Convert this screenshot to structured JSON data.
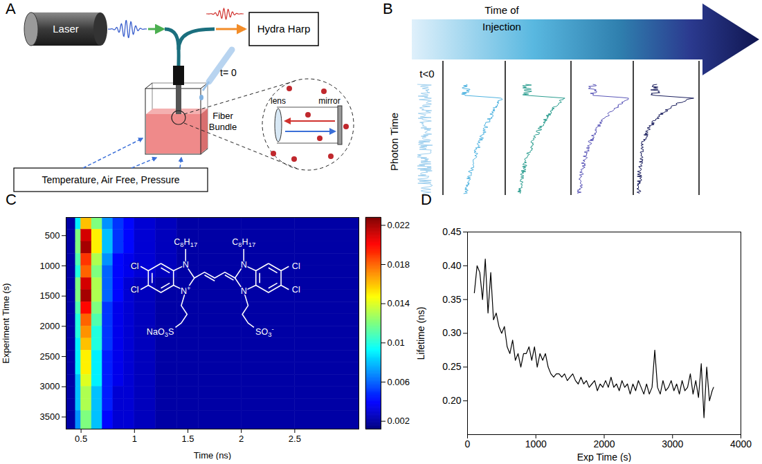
{
  "panel_a": {
    "letter": "A",
    "labels": {
      "laser": "Laser",
      "detector": "Hydra Harp",
      "injection": "t= 0",
      "fiber": "Fiber Bundle",
      "lens": "lens",
      "mirror": "mirror",
      "conditions": "Temperature, Air Free, Pressure"
    }
  },
  "panel_b": {
    "letter": "B",
    "labels": [
      "t<0",
      "Time of Injection"
    ],
    "axis_label": "Photon Time"
  },
  "chart_data": [
    {
      "letter": "C",
      "type": "heatmap",
      "x_label": "Time (ns)",
      "y_label": "Experiment Time (s)",
      "xlim": [
        0.36,
        3.1
      ],
      "xticks": [
        0.5,
        1,
        1.5,
        2,
        2.5
      ],
      "ylim": [
        200,
        3700
      ],
      "yticks": [
        500,
        1000,
        1500,
        2000,
        2500,
        3000,
        3500
      ],
      "x_bins": [
        0.36,
        0.45,
        0.5,
        0.6,
        0.7,
        0.8,
        0.9,
        1.0,
        1.2,
        1.4,
        1.6,
        2.0,
        2.5,
        3.1
      ],
      "y_bins": [
        200,
        400,
        600,
        800,
        1000,
        1200,
        1400,
        1600,
        1800,
        2000,
        2200,
        2400,
        2600,
        2800,
        3000,
        3200,
        3400,
        3700
      ],
      "cells": [
        [
          0.002,
          0.009,
          0.016,
          0.012,
          0.007,
          0.005,
          0.004,
          0.003,
          0.0025,
          0.002,
          0.002,
          0.002,
          0.002
        ],
        [
          0.002,
          0.012,
          0.021,
          0.015,
          0.008,
          0.005,
          0.004,
          0.003,
          0.0025,
          0.002,
          0.002,
          0.002,
          0.002
        ],
        [
          0.002,
          0.012,
          0.022,
          0.015,
          0.008,
          0.005,
          0.004,
          0.003,
          0.0025,
          0.002,
          0.002,
          0.002,
          0.002
        ],
        [
          0.002,
          0.011,
          0.019,
          0.013,
          0.007,
          0.004,
          0.0035,
          0.003,
          0.0025,
          0.002,
          0.002,
          0.002,
          0.002
        ],
        [
          0.002,
          0.01,
          0.018,
          0.012,
          0.006,
          0.004,
          0.0035,
          0.003,
          0.0025,
          0.002,
          0.002,
          0.002,
          0.002
        ],
        [
          0.002,
          0.012,
          0.021,
          0.013,
          0.006,
          0.004,
          0.003,
          0.0025,
          0.002,
          0.002,
          0.002,
          0.002,
          0.002
        ],
        [
          0.002,
          0.012,
          0.022,
          0.013,
          0.006,
          0.004,
          0.003,
          0.0025,
          0.002,
          0.002,
          0.002,
          0.002,
          0.002
        ],
        [
          0.002,
          0.011,
          0.02,
          0.012,
          0.005,
          0.0035,
          0.003,
          0.0025,
          0.002,
          0.002,
          0.002,
          0.002,
          0.002
        ],
        [
          0.002,
          0.01,
          0.018,
          0.011,
          0.005,
          0.0035,
          0.003,
          0.0025,
          0.002,
          0.002,
          0.002,
          0.002,
          0.002
        ],
        [
          0.002,
          0.01,
          0.017,
          0.01,
          0.005,
          0.0035,
          0.003,
          0.0025,
          0.002,
          0.002,
          0.002,
          0.002,
          0.002
        ],
        [
          0.002,
          0.009,
          0.016,
          0.01,
          0.005,
          0.0035,
          0.003,
          0.0025,
          0.002,
          0.002,
          0.002,
          0.002,
          0.002
        ],
        [
          0.002,
          0.009,
          0.015,
          0.009,
          0.0045,
          0.0035,
          0.003,
          0.0025,
          0.002,
          0.002,
          0.002,
          0.002,
          0.002
        ],
        [
          0.002,
          0.009,
          0.015,
          0.009,
          0.0045,
          0.0035,
          0.003,
          0.0025,
          0.002,
          0.002,
          0.002,
          0.002,
          0.002
        ],
        [
          0.002,
          0.008,
          0.014,
          0.009,
          0.0045,
          0.0035,
          0.003,
          0.0025,
          0.002,
          0.002,
          0.002,
          0.002,
          0.002
        ],
        [
          0.002,
          0.008,
          0.013,
          0.008,
          0.0045,
          0.003,
          0.003,
          0.0025,
          0.002,
          0.002,
          0.002,
          0.002,
          0.002
        ],
        [
          0.002,
          0.008,
          0.013,
          0.008,
          0.0045,
          0.003,
          0.003,
          0.0025,
          0.002,
          0.002,
          0.002,
          0.002,
          0.002
        ],
        [
          0.002,
          0.007,
          0.012,
          0.008,
          0.004,
          0.003,
          0.003,
          0.0025,
          0.002,
          0.002,
          0.002,
          0.002,
          0.002
        ]
      ],
      "color_range": [
        0.0012,
        0.0228
      ],
      "color_ticks": [
        0.002,
        0.006,
        0.01,
        0.014,
        0.018,
        0.022
      ],
      "structure": {
        "substituent": "C8H17",
        "nitrogen": "N",
        "cationic_nitrogen": "N+",
        "halogen": "Cl",
        "left_sulfonate": "NaO3S",
        "right_sulfonate": "SO3-"
      }
    },
    {
      "letter": "D",
      "type": "line",
      "x_label": "Exp Time (s)",
      "y_label": "Lifetime (ns)",
      "color": "#000000",
      "xlim": [
        0,
        4000
      ],
      "xticks": [
        0,
        1000,
        2000,
        3000,
        4000
      ],
      "ylim": [
        0.15,
        0.45
      ],
      "yticks": [
        {
          "value": 0.2,
          "label": "0.20"
        },
        {
          "value": 0.25,
          "label": "0.25"
        },
        {
          "value": 0.3,
          "label": "0.30"
        },
        {
          "value": 0.35,
          "label": "0.35"
        },
        {
          "value": 0.4,
          "label": "0.40"
        },
        {
          "value": 0.45,
          "label": "0.45"
        }
      ],
      "x": [
        100,
        140,
        180,
        220,
        260,
        300,
        340,
        380,
        420,
        460,
        500,
        540,
        580,
        620,
        660,
        700,
        740,
        780,
        820,
        860,
        900,
        940,
        980,
        1020,
        1060,
        1100,
        1140,
        1180,
        1220,
        1260,
        1300,
        1340,
        1380,
        1420,
        1460,
        1500,
        1540,
        1580,
        1620,
        1660,
        1700,
        1740,
        1780,
        1820,
        1860,
        1900,
        1940,
        1980,
        2020,
        2060,
        2100,
        2140,
        2180,
        2220,
        2260,
        2300,
        2340,
        2380,
        2420,
        2460,
        2500,
        2540,
        2580,
        2620,
        2660,
        2700,
        2740,
        2780,
        2820,
        2860,
        2900,
        2940,
        2980,
        3020,
        3060,
        3100,
        3140,
        3180,
        3220,
        3260,
        3300,
        3340,
        3380,
        3420,
        3460,
        3500,
        3540,
        3580,
        3600
      ],
      "values": [
        0.36,
        0.4,
        0.39,
        0.35,
        0.41,
        0.33,
        0.39,
        0.32,
        0.33,
        0.31,
        0.3,
        0.31,
        0.28,
        0.27,
        0.29,
        0.26,
        0.27,
        0.25,
        0.27,
        0.27,
        0.28,
        0.26,
        0.28,
        0.25,
        0.27,
        0.26,
        0.27,
        0.25,
        0.24,
        0.235,
        0.24,
        0.24,
        0.235,
        0.24,
        0.23,
        0.235,
        0.24,
        0.23,
        0.225,
        0.235,
        0.225,
        0.23,
        0.22,
        0.225,
        0.23,
        0.215,
        0.225,
        0.22,
        0.23,
        0.22,
        0.235,
        0.22,
        0.225,
        0.215,
        0.23,
        0.22,
        0.225,
        0.21,
        0.225,
        0.215,
        0.23,
        0.22,
        0.21,
        0.225,
        0.21,
        0.22,
        0.275,
        0.22,
        0.21,
        0.23,
        0.215,
        0.22,
        0.23,
        0.215,
        0.225,
        0.21,
        0.23,
        0.215,
        0.22,
        0.24,
        0.21,
        0.23,
        0.205,
        0.255,
        0.175,
        0.25,
        0.2,
        0.215,
        0.22
      ]
    }
  ]
}
